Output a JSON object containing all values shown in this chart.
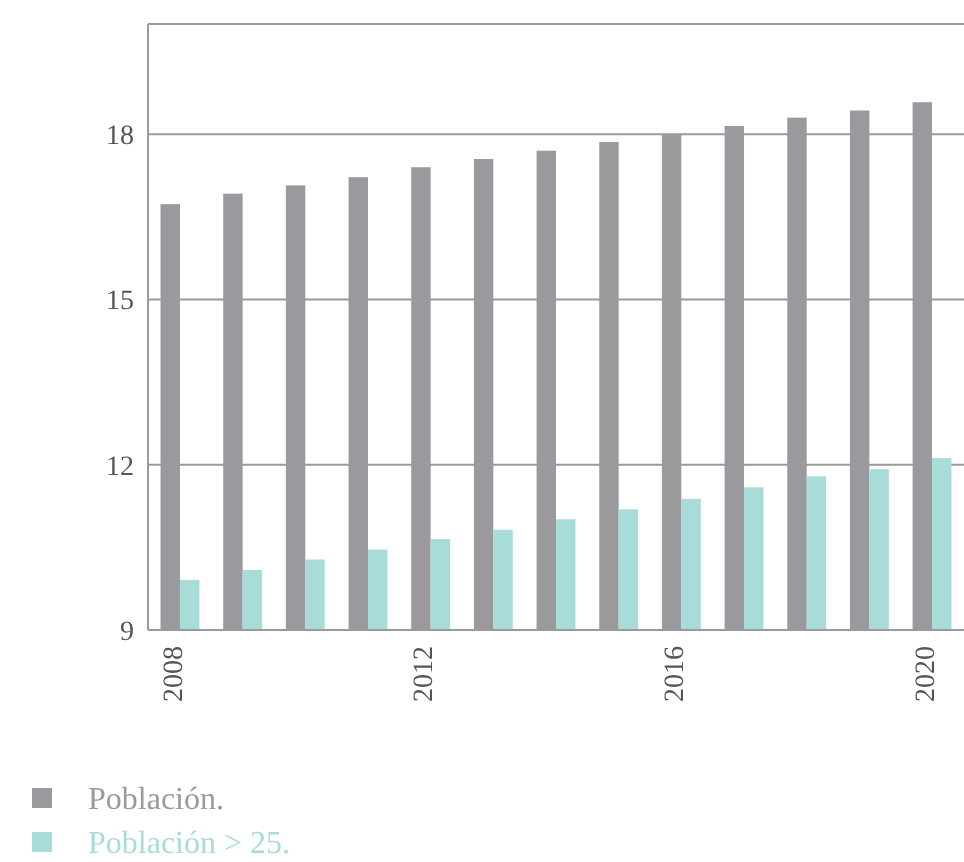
{
  "chart_data": {
    "type": "bar",
    "categories": [
      "2008",
      null,
      null,
      null,
      "2012",
      null,
      null,
      null,
      "2016",
      null,
      null,
      null,
      "2020"
    ],
    "series": [
      {
        "name": "Población.",
        "color": "#9a9a9e",
        "values": [
          16.73,
          16.92,
          17.07,
          17.22,
          17.4,
          17.55,
          17.7,
          17.86,
          18.0,
          18.15,
          18.3,
          18.43,
          18.58
        ]
      },
      {
        "name": "Población > 25.",
        "color": "#a8dcd8",
        "values": [
          9.91,
          10.09,
          10.28,
          10.46,
          10.65,
          10.82,
          11.01,
          11.19,
          11.38,
          11.59,
          11.79,
          11.92,
          12.12
        ]
      }
    ],
    "ylim": [
      9,
      20
    ],
    "yticks": [
      9,
      12,
      15,
      18
    ],
    "grid": "y",
    "legend": "bottom"
  }
}
